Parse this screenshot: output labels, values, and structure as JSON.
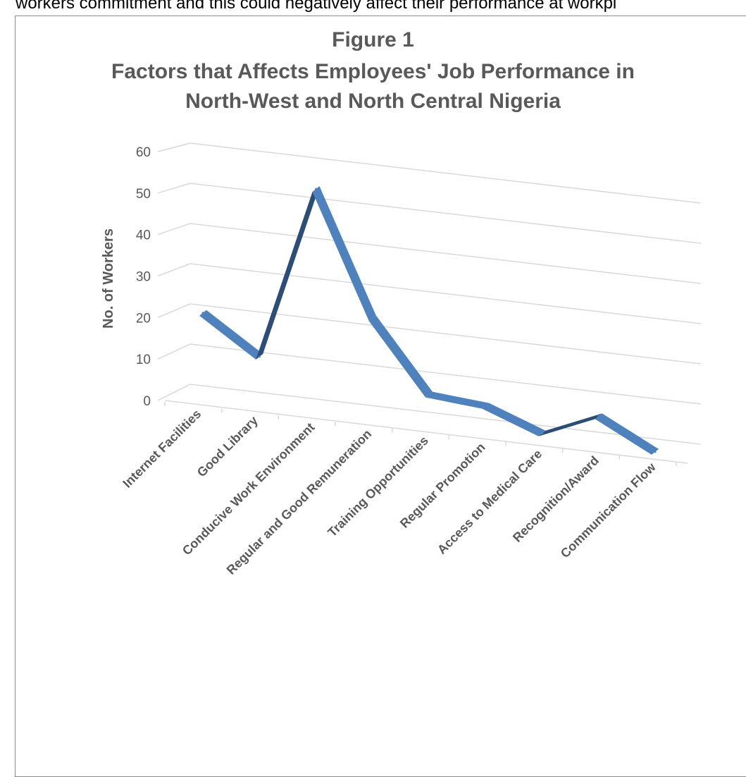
{
  "page": {
    "top_text": "workers commitment and this could negatively affect their performance at workpl"
  },
  "chart_data": {
    "type": "line",
    "title": "Figure 1",
    "subtitle_lines": [
      "Factors that Affects Employees' Job Performance in",
      "North-West and North Central Nigeria"
    ],
    "xlabel": "",
    "ylabel": "No. of Workers",
    "ylim": [
      0,
      60
    ],
    "yticks": [
      0,
      10,
      20,
      30,
      40,
      50,
      60
    ],
    "grid": true,
    "legend": "none",
    "categories": [
      "Internet Facilities",
      "Good Library",
      "Conducive Work Environment",
      "Regular and Good Remuneration",
      "Training Opportunities",
      "Regular Promotion",
      "Access to Medical Care",
      "Recognition/Award",
      "Communication Flow"
    ],
    "series": [
      {
        "values": [
          16,
          8,
          52,
          23,
          7,
          7,
          3,
          10,
          4
        ]
      }
    ],
    "colors": {
      "line": "#4f81bd",
      "line_dark": "#2c4d75",
      "grid": "#d9d9d9",
      "text": "#595959"
    }
  }
}
